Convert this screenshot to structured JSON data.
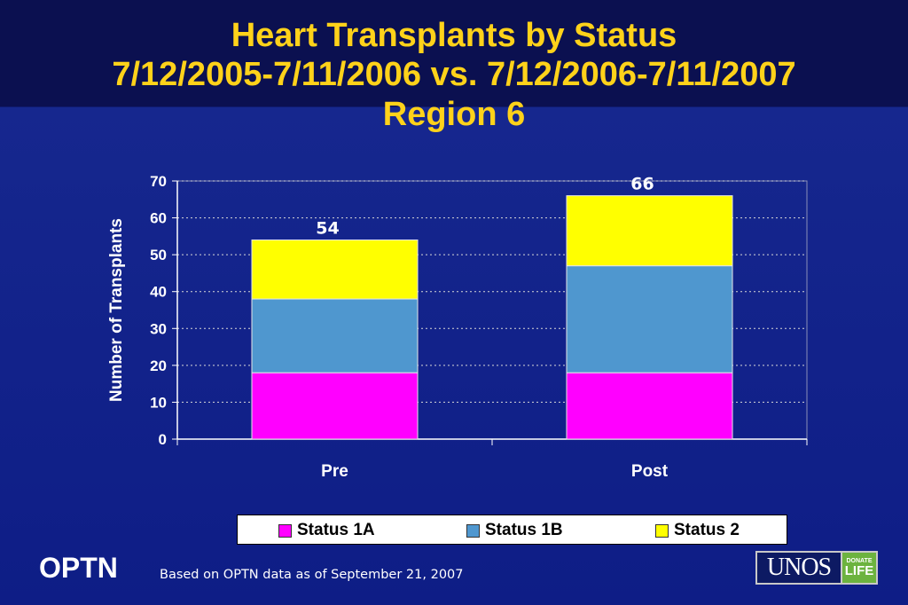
{
  "slide": {
    "title_line1": "Heart Transplants by Status",
    "title_line2": "7/12/2005-7/11/2006 vs. 7/12/2006-7/11/2007",
    "title_line3": "Region 6",
    "footer_org": "OPTN",
    "footnote": "Based on OPTN data as of  September  21, 2007",
    "logo_main": "UNOS",
    "logo_side_top": "DONATE",
    "logo_side_bottom": "LIFE"
  },
  "colors": {
    "title": "#ffd21a",
    "status_1a": "#ff00ff",
    "status_1b": "#4f97cf",
    "status_2": "#ffff00"
  },
  "chart_data": {
    "type": "bar",
    "stacked": true,
    "categories": [
      "Pre",
      "Post"
    ],
    "series": [
      {
        "name": "Status 1A",
        "values": [
          18,
          18
        ],
        "color": "#ff00ff"
      },
      {
        "name": "Status 1B",
        "values": [
          20,
          29
        ],
        "color": "#4f97cf"
      },
      {
        "name": "Status 2",
        "values": [
          16,
          19
        ],
        "color": "#ffff00"
      }
    ],
    "totals": [
      54,
      66
    ],
    "ylabel": "Number of Transplants",
    "xlabel": "",
    "ylim": [
      0,
      70
    ],
    "yticks": [
      0,
      10,
      20,
      30,
      40,
      50,
      60,
      70
    ],
    "grid": true,
    "legend": "bottom"
  }
}
